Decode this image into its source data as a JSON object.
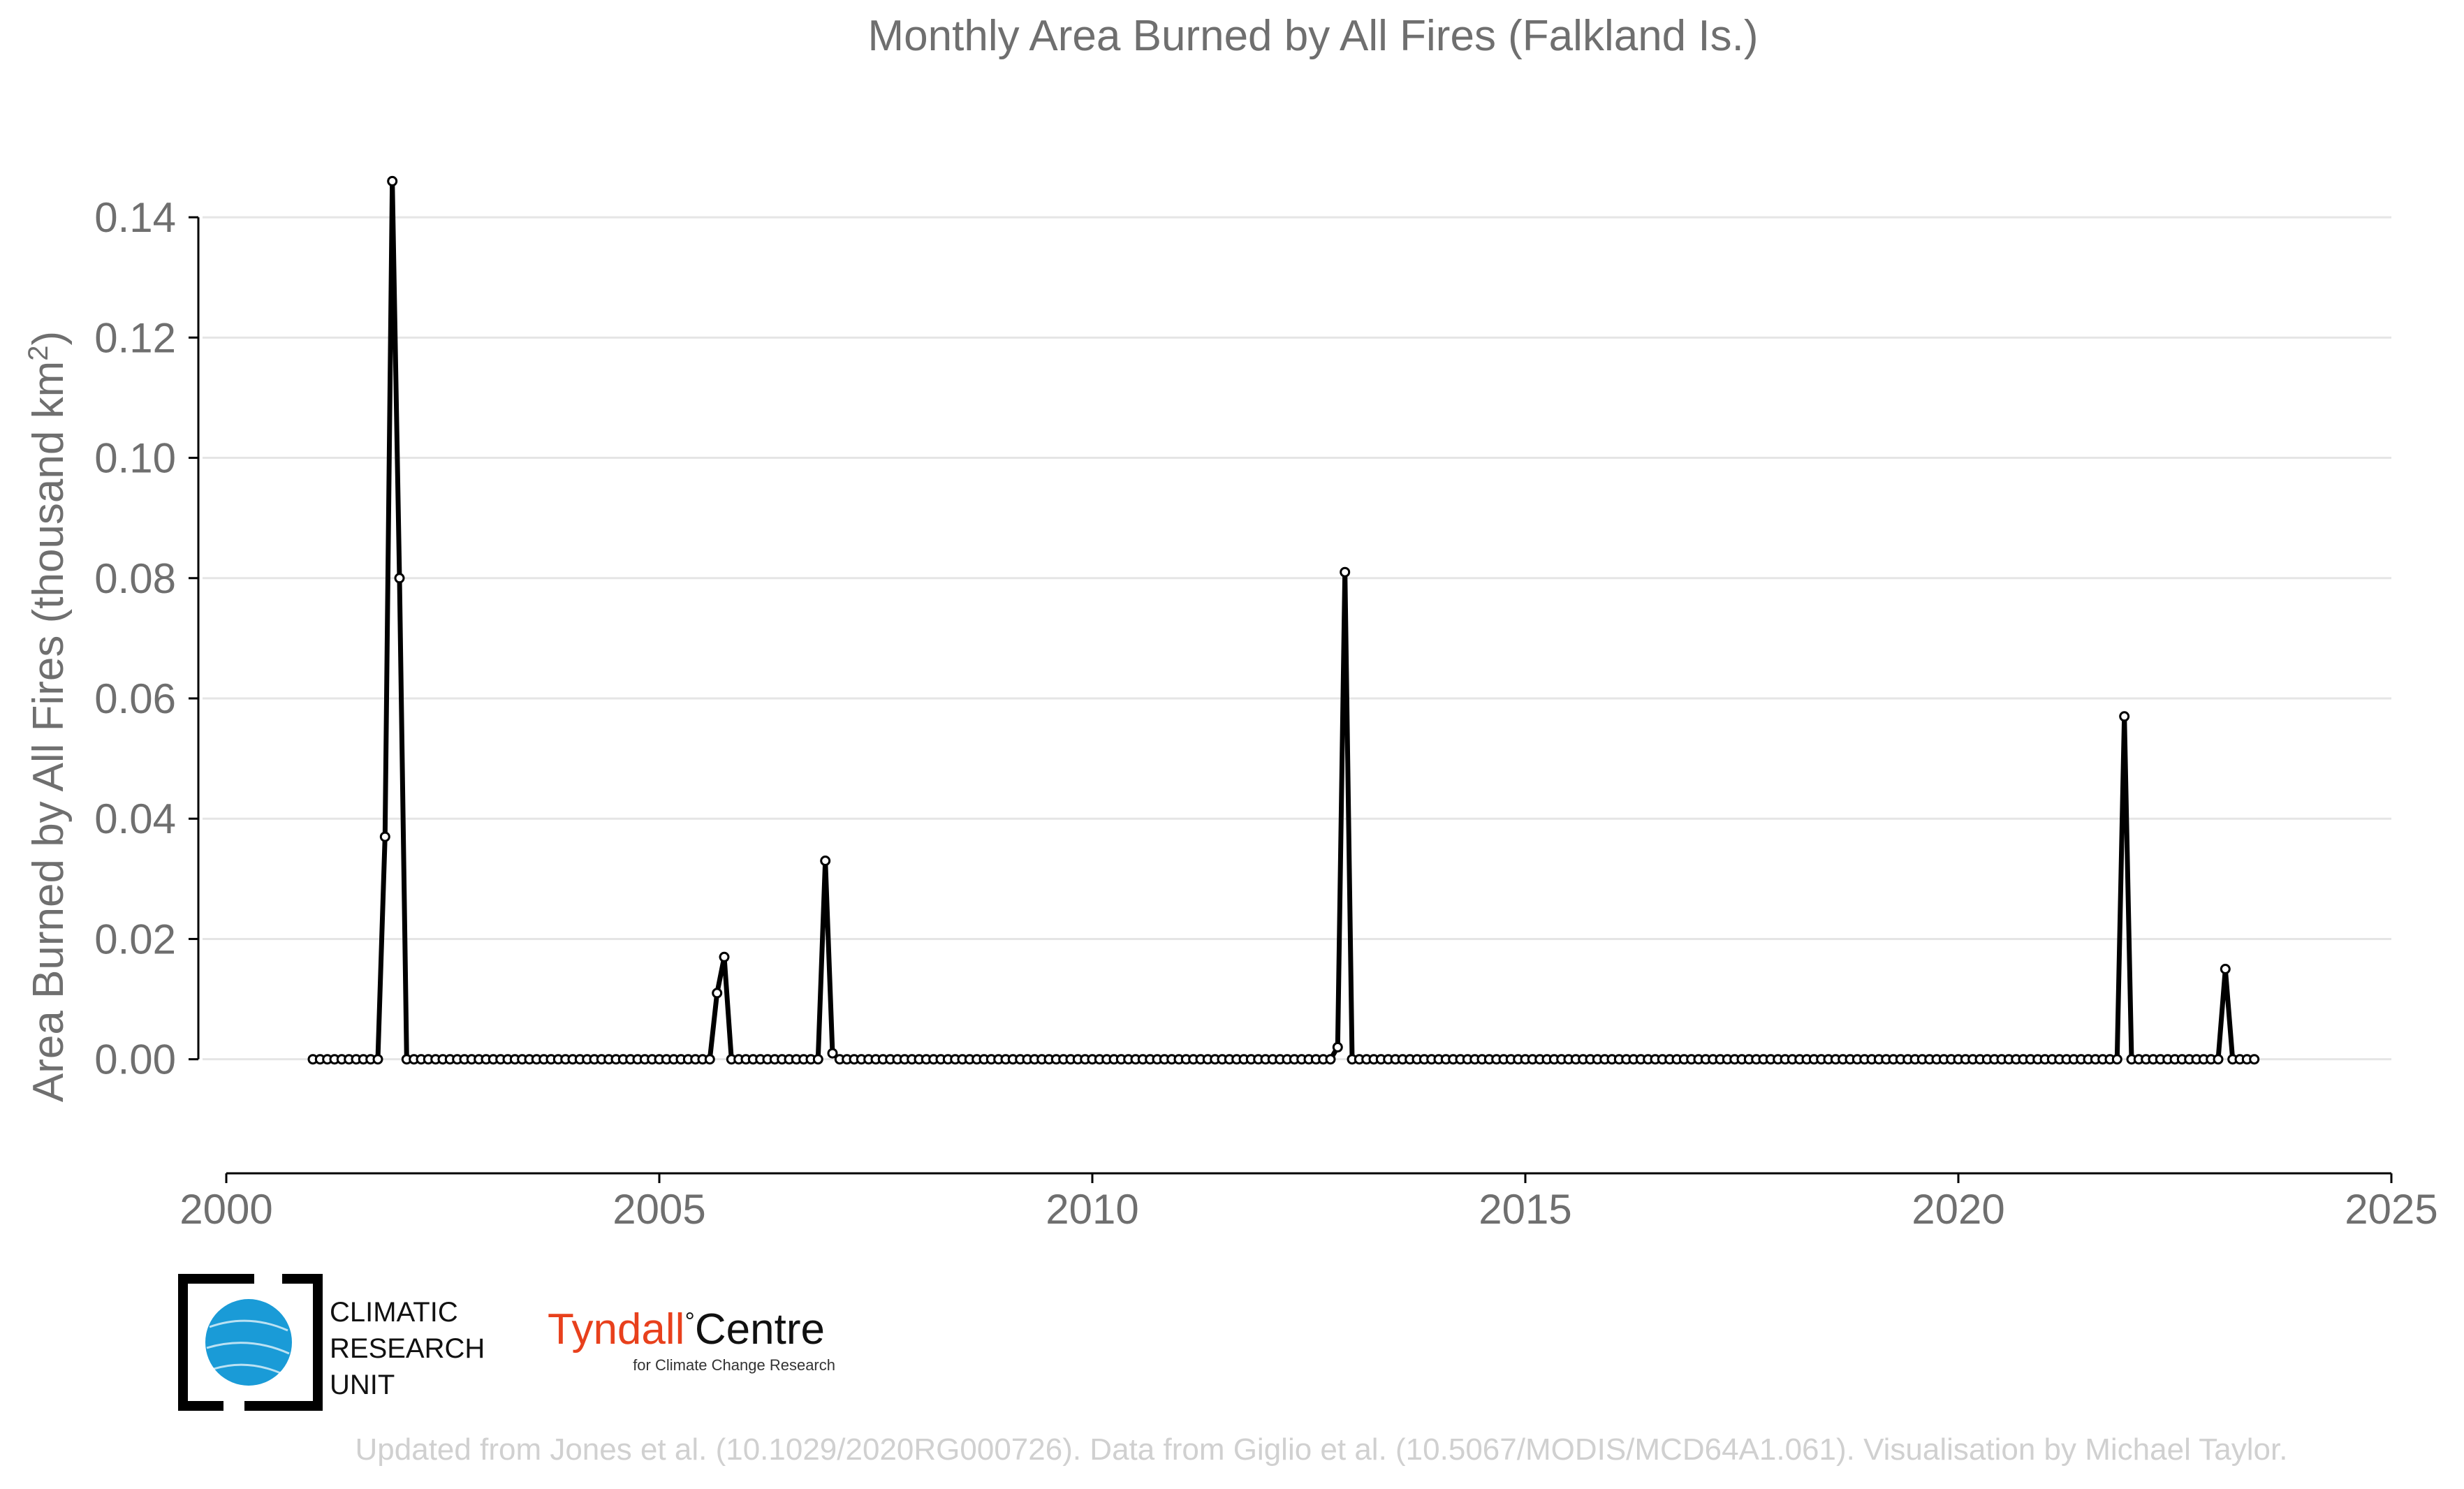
{
  "chart_data": {
    "type": "line",
    "title": "Monthly Area Burned by All Fires (Falkland Is.)",
    "ylabel": "Area Burned by All Fires (thousand km",
    "ylabel_superscript": "2",
    "ylabel_close": ")",
    "xlabel": "",
    "xlim": [
      2000,
      2025
    ],
    "ylim": [
      -0.012,
      0.15
    ],
    "x_ticks": [
      2000,
      2005,
      2010,
      2015,
      2020,
      2025
    ],
    "x_tick_labels": [
      "2000",
      "2005",
      "2010",
      "2015",
      "2020",
      "2025"
    ],
    "y_ticks": [
      0,
      0.02,
      0.04,
      0.06,
      0.08,
      0.1,
      0.12,
      0.14
    ],
    "y_tick_labels": [
      "0.00",
      "0.02",
      "0.04",
      "0.06",
      "0.08",
      "0.10",
      "0.12",
      "0.14"
    ],
    "grid": "horizontal",
    "colors": {
      "line": "#000000",
      "marker_fill": "#ffffff",
      "grid": "#e5e5e5",
      "text": "#6f6f6f"
    },
    "series": [
      {
        "start": "2001-01",
        "frequency": "monthly",
        "values": [
          0,
          0,
          0,
          0,
          0,
          0,
          0,
          0,
          0,
          0,
          0.037,
          0.146,
          0.08,
          0,
          0,
          0,
          0,
          0,
          0,
          0,
          0,
          0,
          0,
          0,
          0,
          0,
          0,
          0,
          0,
          0,
          0,
          0,
          0,
          0,
          0,
          0,
          0,
          0,
          0,
          0,
          0,
          0,
          0,
          0,
          0,
          0,
          0,
          0,
          0,
          0,
          0,
          0,
          0,
          0,
          0,
          0,
          0.011,
          0.017,
          0,
          0,
          0,
          0,
          0,
          0,
          0,
          0,
          0,
          0,
          0,
          0,
          0,
          0.033,
          0.001,
          0,
          0,
          0,
          0,
          0,
          0,
          0,
          0,
          0,
          0,
          0,
          0,
          0,
          0,
          0,
          0,
          0,
          0,
          0,
          0,
          0,
          0,
          0,
          0,
          0,
          0,
          0,
          0,
          0,
          0,
          0,
          0,
          0,
          0,
          0,
          0,
          0,
          0,
          0,
          0,
          0,
          0,
          0,
          0,
          0,
          0,
          0,
          0,
          0,
          0,
          0,
          0,
          0,
          0,
          0,
          0,
          0,
          0,
          0,
          0,
          0,
          0,
          0,
          0,
          0,
          0,
          0,
          0,
          0,
          0.002,
          0.081,
          0,
          0,
          0,
          0,
          0,
          0,
          0,
          0,
          0,
          0,
          0,
          0,
          0,
          0,
          0,
          0,
          0,
          0,
          0,
          0,
          0,
          0,
          0,
          0,
          0,
          0,
          0,
          0,
          0,
          0,
          0,
          0,
          0,
          0,
          0,
          0,
          0,
          0,
          0,
          0,
          0,
          0,
          0,
          0,
          0,
          0,
          0,
          0,
          0,
          0,
          0,
          0,
          0,
          0,
          0,
          0,
          0,
          0,
          0,
          0,
          0,
          0,
          0,
          0,
          0,
          0,
          0,
          0,
          0,
          0,
          0,
          0,
          0,
          0,
          0,
          0,
          0,
          0,
          0,
          0,
          0,
          0,
          0,
          0,
          0,
          0,
          0,
          0,
          0,
          0,
          0,
          0,
          0,
          0,
          0,
          0,
          0,
          0,
          0,
          0,
          0,
          0,
          0,
          0,
          0,
          0,
          0,
          0.057,
          0,
          0,
          0,
          0,
          0,
          0,
          0,
          0,
          0,
          0,
          0,
          0,
          0,
          0.015,
          0,
          0,
          0,
          0
        ]
      }
    ]
  },
  "logos": {
    "cru": {
      "line1": "CLIMATIC",
      "line2": "RESEARCH",
      "line3": "UNIT",
      "globe_color": "#1a9bd7"
    },
    "tyndall": {
      "name": "Tyndall",
      "degree": "°",
      "centre": "Centre",
      "subtitle": "for Climate Change Research",
      "name_color": "#e8401c"
    }
  },
  "credit": "Updated from Jones et al. (10.1029/2020RG000726). Data from Giglio et al. (10.5067/MODIS/MCD64A1.061). Visualisation by Michael Taylor."
}
